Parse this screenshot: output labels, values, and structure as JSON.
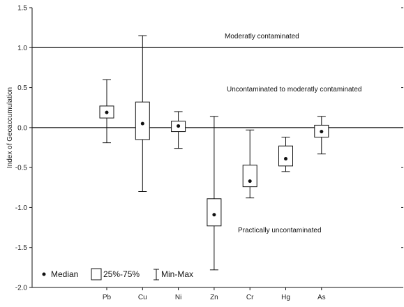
{
  "chart_data": {
    "type": "box",
    "ylabel": "Index of Geoaccumulation",
    "ylim": [
      -2.0,
      1.5
    ],
    "yticks": [
      "1.5",
      "1.0",
      "0.5",
      "0.0",
      "-0.5",
      "-1.0",
      "-1.5",
      "-2.0"
    ],
    "categories": [
      "Pb",
      "Cu",
      "Ni",
      "Zn",
      "Cr",
      "Hg",
      "As"
    ],
    "boxes": [
      {
        "min": -0.19,
        "q1": 0.12,
        "median": 0.19,
        "q3": 0.27,
        "max": 0.6
      },
      {
        "min": -0.8,
        "q1": -0.15,
        "median": 0.05,
        "q3": 0.32,
        "max": 1.15
      },
      {
        "min": -0.26,
        "q1": -0.05,
        "median": 0.02,
        "q3": 0.08,
        "max": 0.2
      },
      {
        "min": -1.78,
        "q1": -1.23,
        "median": -1.09,
        "q3": -0.89,
        "max": 0.14
      },
      {
        "min": -0.88,
        "q1": -0.74,
        "median": -0.67,
        "q3": -0.47,
        "max": -0.03
      },
      {
        "min": -0.55,
        "q1": -0.48,
        "median": -0.39,
        "q3": -0.23,
        "max": -0.12
      },
      {
        "min": -0.33,
        "q1": -0.12,
        "median": -0.05,
        "q3": 0.03,
        "max": 0.14
      }
    ],
    "reference_lines": [
      1.0,
      0.0
    ],
    "annotations": [
      "Moderatly contaminated",
      "Uncontaminated to moderatly contaminated",
      "Practically uncontaminated"
    ],
    "legend": {
      "position": "bottom-left",
      "median_label": "Median",
      "box_label": "25%-75%",
      "whisker_label": "Min-Max"
    },
    "grid": false
  }
}
